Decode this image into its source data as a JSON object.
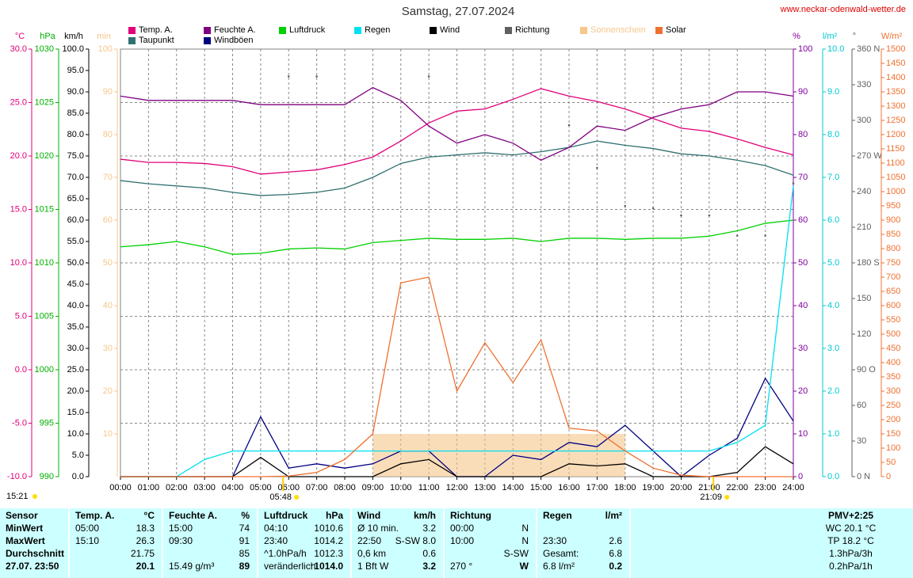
{
  "chart_data": {
    "type": "multi-axis-line",
    "title": "Samstag, 27.07.2024",
    "source": "www.neckar-odenwald-wetter.de",
    "grid": true,
    "x": [
      0,
      1,
      2,
      3,
      4,
      5,
      6,
      7,
      8,
      9,
      10,
      11,
      12,
      13,
      14,
      15,
      16,
      17,
      18,
      19,
      20,
      21,
      22,
      23,
      24
    ],
    "xlim": [
      0,
      24
    ],
    "xticks": [
      {
        "value": 0,
        "label": "00:00"
      },
      {
        "value": 1,
        "label": "01:00"
      },
      {
        "value": 2,
        "label": "02:00"
      },
      {
        "value": 3,
        "label": "03:00"
      },
      {
        "value": 4,
        "label": "04:00"
      },
      {
        "value": 5,
        "label": "05:00"
      },
      {
        "value": 6,
        "label": "06:00"
      },
      {
        "value": 7,
        "label": "07:00"
      },
      {
        "value": 8,
        "label": "08:00"
      },
      {
        "value": 9,
        "label": "09:00"
      },
      {
        "value": 10,
        "label": "10:00"
      },
      {
        "value": 11,
        "label": "11:00"
      },
      {
        "value": 12,
        "label": "12:00"
      },
      {
        "value": 13,
        "label": "13:00"
      },
      {
        "value": 14,
        "label": "14:00"
      },
      {
        "value": 15,
        "label": "15:00"
      },
      {
        "value": 16,
        "label": "16:00"
      },
      {
        "value": 17,
        "label": "17:00"
      },
      {
        "value": 18,
        "label": "18:00"
      },
      {
        "value": 19,
        "label": "19:00"
      },
      {
        "value": 20,
        "label": "20:00"
      },
      {
        "value": 21,
        "label": "21:00"
      },
      {
        "value": 22,
        "label": "22:00"
      },
      {
        "value": 23,
        "label": "23:00"
      },
      {
        "value": 24,
        "label": "24:00"
      }
    ],
    "axes": [
      {
        "label": "°C",
        "color": "#e0007a",
        "lim": [
          -10,
          30
        ],
        "ticks": [
          {
            "value": -10,
            "label": "-10.0"
          },
          {
            "value": -5,
            "label": "-5.0"
          },
          {
            "value": 0,
            "label": "0.0"
          },
          {
            "value": 5,
            "label": "5.0"
          },
          {
            "value": 10,
            "label": "10.0"
          },
          {
            "value": 15,
            "label": "15.0"
          },
          {
            "value": 20,
            "label": "20.0"
          },
          {
            "value": 25,
            "label": "25.0"
          },
          {
            "value": 30,
            "label": "30.0"
          }
        ]
      },
      {
        "label": "hPa",
        "color": "#00b000",
        "lim": [
          990,
          1030
        ],
        "ticks": [
          990,
          995,
          1000,
          1005,
          1010,
          1015,
          1020,
          1025,
          1030
        ]
      },
      {
        "label": "km/h",
        "color": "#000000",
        "lim": [
          0,
          100
        ],
        "ticks": [
          {
            "value": 0,
            "label": "0.0"
          },
          {
            "value": 5,
            "label": "5.0"
          },
          {
            "value": 10,
            "label": "10.0"
          },
          {
            "value": 15,
            "label": "15.0"
          },
          {
            "value": 20,
            "label": "20.0"
          },
          {
            "value": 25,
            "label": "25.0"
          },
          {
            "value": 30,
            "label": "30.0"
          },
          {
            "value": 35,
            "label": "35.0"
          },
          {
            "value": 40,
            "label": "40.0"
          },
          {
            "value": 45,
            "label": "45.0"
          },
          {
            "value": 50,
            "label": "50.0"
          },
          {
            "value": 55,
            "label": "55.0"
          },
          {
            "value": 60,
            "label": "60.0"
          },
          {
            "value": 65,
            "label": "65.0"
          },
          {
            "value": 70,
            "label": "70.0"
          },
          {
            "value": 75,
            "label": "75.0"
          },
          {
            "value": 80,
            "label": "80.0"
          },
          {
            "value": 85,
            "label": "85.0"
          },
          {
            "value": 90,
            "label": "90.0"
          },
          {
            "value": 95,
            "label": "95.0"
          },
          {
            "value": 100,
            "label": "100.0"
          }
        ]
      },
      {
        "label": "min",
        "color": "#f5c78a",
        "lim": [
          0,
          100
        ],
        "ticks": [
          10,
          20,
          30,
          40,
          50,
          60,
          70,
          80,
          90,
          100
        ]
      },
      {
        "label": "%",
        "color": "#8000a0",
        "lim": [
          0,
          100
        ],
        "ticks": [
          0,
          10,
          20,
          30,
          40,
          50,
          60,
          70,
          80,
          90,
          100
        ]
      },
      {
        "label": "l/m²",
        "color": "#00c8d0",
        "lim": [
          0,
          10
        ],
        "ticks": [
          {
            "value": 0,
            "label": "0.0"
          },
          {
            "value": 1,
            "label": "1.0"
          },
          {
            "value": 2,
            "label": "2.0"
          },
          {
            "value": 3,
            "label": "3.0"
          },
          {
            "value": 4,
            "label": "4.0"
          },
          {
            "value": 5,
            "label": "5.0"
          },
          {
            "value": 6,
            "label": "6.0"
          },
          {
            "value": 7,
            "label": "7.0"
          },
          {
            "value": 8,
            "label": "8.0"
          },
          {
            "value": 9,
            "label": "9.0"
          },
          {
            "value": 10,
            "label": "10.0"
          }
        ]
      },
      {
        "label": "°",
        "color": "#606060",
        "lim": [
          0,
          360
        ],
        "ticks": [
          {
            "value": 0,
            "label": "0 N"
          },
          30,
          60,
          {
            "value": 90,
            "label": "90 O"
          },
          120,
          150,
          {
            "value": 180,
            "label": "180 S"
          },
          210,
          240,
          {
            "value": 270,
            "label": "270 W"
          },
          300,
          330,
          {
            "value": 360,
            "label": "360 N"
          }
        ]
      },
      {
        "label": "W/m²",
        "color": "#f07030",
        "lim": [
          0,
          1500
        ],
        "ticks": [
          0,
          50,
          100,
          150,
          200,
          250,
          300,
          350,
          400,
          450,
          500,
          550,
          600,
          650,
          700,
          750,
          800,
          850,
          900,
          950,
          1000,
          1050,
          1100,
          1150,
          1200,
          1250,
          1300,
          1350,
          1400,
          1450,
          1500
        ]
      }
    ],
    "series": [
      {
        "name": "Temp. A.",
        "color": "#e0007a",
        "axis": 0,
        "kind": "line",
        "values": [
          19.7,
          19.4,
          19.4,
          19.3,
          19.0,
          18.3,
          18.5,
          18.7,
          19.2,
          19.9,
          21.4,
          23.1,
          24.2,
          24.4,
          25.3,
          26.3,
          25.6,
          25.1,
          24.4,
          23.5,
          22.6,
          22.3,
          21.6,
          20.8,
          20.1
        ]
      },
      {
        "name": "Taupunkt",
        "color": "#307070",
        "axis": 0,
        "kind": "line",
        "values": [
          17.7,
          17.4,
          17.2,
          17.0,
          16.6,
          16.3,
          16.4,
          16.6,
          17.0,
          18.0,
          19.3,
          19.9,
          20.1,
          20.3,
          20.1,
          20.4,
          20.8,
          21.4,
          21.0,
          20.7,
          20.2,
          20.0,
          19.6,
          19.1,
          18.2
        ]
      },
      {
        "name": "Feuchte A.",
        "color": "#800080",
        "axis": 4,
        "kind": "line",
        "values": [
          89,
          88,
          88,
          88,
          88,
          87,
          87,
          87,
          87,
          91,
          88,
          82,
          78,
          80,
          78,
          74,
          77,
          82,
          81,
          84,
          86,
          87,
          90,
          90,
          89
        ]
      },
      {
        "name": "Windböen",
        "color": "#000080",
        "axis": 2,
        "kind": "line",
        "values": [
          0,
          0,
          0,
          0,
          0,
          14,
          2,
          3,
          2,
          3,
          6,
          6,
          0,
          0,
          5,
          4,
          8,
          7,
          12,
          6,
          0,
          5,
          9,
          23,
          13
        ]
      },
      {
        "name": "Luftdruck",
        "color": "#00d000",
        "axis": 1,
        "kind": "line",
        "values": [
          1011.5,
          1011.7,
          1012.0,
          1011.5,
          1010.8,
          1010.9,
          1011.3,
          1011.4,
          1011.3,
          1011.9,
          1012.1,
          1012.3,
          1012.2,
          1012.2,
          1012.3,
          1012.0,
          1012.3,
          1012.3,
          1012.2,
          1012.3,
          1012.3,
          1012.5,
          1013.0,
          1013.7,
          1014.0
        ]
      },
      {
        "name": "Regen",
        "color": "#00e0f0",
        "axis": 5,
        "kind": "line",
        "values": [
          0,
          0,
          0,
          0.4,
          0.6,
          0.6,
          0.6,
          0.6,
          0.6,
          0.6,
          0.6,
          0.6,
          0.6,
          0.6,
          0.6,
          0.6,
          0.6,
          0.6,
          0.6,
          0.6,
          0.6,
          0.6,
          0.8,
          1.2,
          6.8
        ]
      },
      {
        "name": "Wind",
        "color": "#000000",
        "axis": 2,
        "kind": "line",
        "values": [
          0,
          0,
          0,
          0,
          0,
          4.5,
          0,
          0,
          0,
          0,
          3,
          4,
          0,
          0,
          0,
          0,
          3,
          2.5,
          3,
          0,
          0,
          0,
          1,
          7,
          3
        ]
      },
      {
        "name": "Richtung",
        "color": "#606060",
        "axis": 6,
        "kind": "dots",
        "values": [
          null,
          null,
          null,
          null,
          null,
          null,
          337,
          337,
          null,
          null,
          null,
          337,
          null,
          null,
          null,
          null,
          296,
          260,
          228,
          226,
          220,
          220,
          203,
          203,
          247
        ]
      },
      {
        "name": "Sonnenschein",
        "color": "#f5c78a",
        "axis": 3,
        "kind": "bars",
        "values": [
          null,
          null,
          null,
          null,
          null,
          null,
          null,
          null,
          null,
          10,
          10,
          10,
          10,
          10,
          10,
          10,
          10,
          10,
          null,
          null,
          null,
          null,
          null,
          null,
          null
        ]
      },
      {
        "name": "Solar",
        "color": "#f07030",
        "axis": 7,
        "kind": "line",
        "values": [
          0,
          0,
          0,
          0,
          0,
          0,
          2,
          15,
          60,
          150,
          680,
          700,
          300,
          470,
          330,
          480,
          170,
          160,
          90,
          30,
          5,
          0,
          0,
          0,
          0
        ]
      }
    ],
    "sunrise": {
      "value": 5.8,
      "label": "05:48"
    },
    "sunset": {
      "value": 21.15,
      "label": "21:09"
    },
    "time": "15:21"
  },
  "table": {
    "sections": [
      {
        "header": [
          "Sensor",
          null
        ],
        "rows": [
          [
            "MinWert",
            null
          ],
          [
            "MaxWert",
            null
          ],
          [
            "Durchschnitt",
            null
          ],
          [
            "27.07. 23:50",
            null
          ]
        ]
      },
      {
        "header": [
          "Temp. A.",
          "°C"
        ],
        "rows": [
          [
            "05:00",
            "18.3"
          ],
          [
            "15:10",
            "26.3"
          ],
          [
            null,
            "21.75"
          ],
          [
            null,
            "20.1"
          ]
        ]
      },
      {
        "header": [
          "Feuchte A.",
          "%"
        ],
        "rows": [
          [
            "15:00",
            "74"
          ],
          [
            "09:30",
            "91"
          ],
          [
            null,
            "85"
          ],
          [
            "15.49 g/m³",
            "89"
          ]
        ]
      },
      {
        "header": [
          "Luftdruck",
          "hPa"
        ],
        "rows": [
          [
            "04:10",
            "1010.6"
          ],
          [
            "23:40",
            "1014.2"
          ],
          [
            "^1.0hPa/h",
            "1012.3"
          ],
          [
            "veränderlich",
            "↑1014.0"
          ]
        ]
      },
      {
        "header": [
          "Wind",
          "km/h"
        ],
        "rows": [
          [
            "Ø 10 min.",
            "3.2"
          ],
          [
            "22:50",
            "S-SW 8.0"
          ],
          [
            "0,6 km",
            "0.6"
          ],
          [
            "1 Bft W",
            "3.2"
          ]
        ]
      },
      {
        "header": [
          "Richtung",
          null
        ],
        "rows": [
          [
            "00:00",
            "N"
          ],
          [
            "10:00",
            "N"
          ],
          [
            null,
            "S-SW"
          ],
          [
            "270 °",
            "W"
          ]
        ]
      },
      {
        "header": [
          "Regen",
          "l/m²"
        ],
        "rows": [
          [
            null,
            null
          ],
          [
            "23:30",
            "2.6"
          ],
          [
            "Gesamt:",
            "6.8"
          ],
          [
            "6.8 l/m²",
            "0.2"
          ]
        ]
      },
      {
        "header": [
          "PMV+2:25",
          null
        ],
        "rows": [
          [
            "WC 20.1 °C",
            null
          ],
          [
            "TP 18.2 °C",
            null
          ],
          [
            "1.3hPa/3h",
            null
          ],
          [
            "0.2hPa/1h",
            null
          ]
        ]
      }
    ]
  }
}
